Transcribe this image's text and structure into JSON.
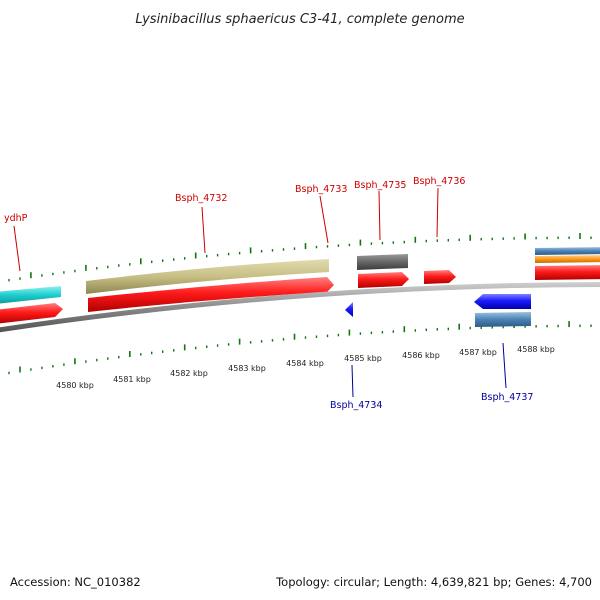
{
  "title": "Lysinibacillus sphaericus C3-41, complete genome",
  "footer": {
    "accession": "Accession: NC_010382",
    "summary": "Topology: circular; Length: 4,639,821 bp; Genes: 4,700"
  },
  "colors": {
    "forward_cds": "#ff1a1a",
    "reverse_cds": "#1a1aff",
    "forward_label": "#cc0000",
    "reverse_label": "#000099",
    "tick": "#117711",
    "backbone": "#8a8a8a",
    "band_cyan": "#1ecece",
    "band_khaki": "#c8bf86",
    "band_gray": "#666666",
    "band_steel": "#4a82b4",
    "band_orange": "#ff9a1a"
  },
  "scale": {
    "unit": "kbp",
    "labels": [
      "4580 kbp",
      "4581 kbp",
      "4582 kbp",
      "4583 kbp",
      "4584 kbp",
      "4585 kbp",
      "4586 kbp",
      "4587 kbp",
      "4588 kbp"
    ]
  },
  "genes": [
    {
      "name": "ydhP",
      "strand": "forward"
    },
    {
      "name": "Bsph_4732",
      "strand": "forward"
    },
    {
      "name": "Bsph_4733",
      "strand": "forward"
    },
    {
      "name": "Bsph_4734",
      "strand": "reverse"
    },
    {
      "name": "Bsph_4735",
      "strand": "forward"
    },
    {
      "name": "Bsph_4736",
      "strand": "forward"
    },
    {
      "name": "Bsph_4737",
      "strand": "reverse"
    }
  ]
}
